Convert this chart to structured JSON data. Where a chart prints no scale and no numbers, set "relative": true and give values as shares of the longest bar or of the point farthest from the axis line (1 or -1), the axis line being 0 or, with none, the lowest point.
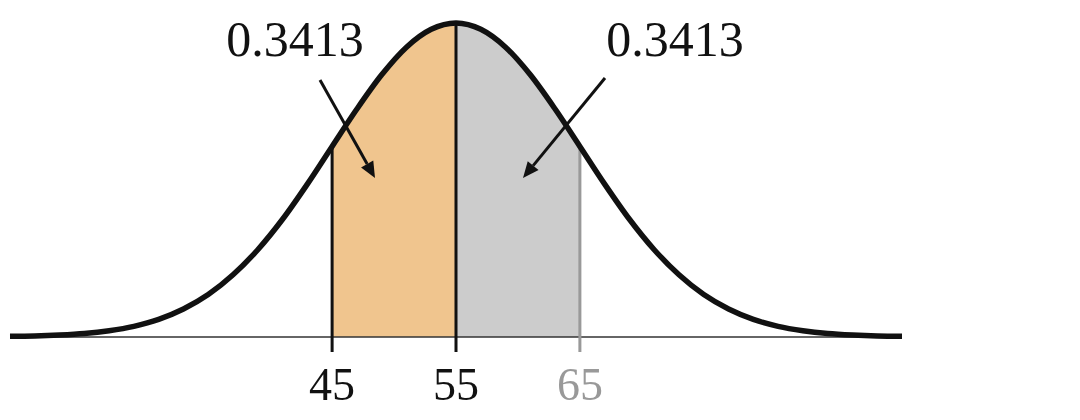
{
  "chart_data": {
    "type": "line",
    "relative": true,
    "xlim": [
      19,
      91
    ],
    "xticks": [
      45,
      55,
      65
    ],
    "series": [
      {
        "type": "area",
        "color": "#f0c58e",
        "x": [
          45,
          47,
          49,
          51,
          53,
          55
        ],
        "values": [
          0.607,
          0.726,
          0.835,
          0.923,
          0.98,
          1
        ]
      },
      {
        "type": "area",
        "color": "#cccccc",
        "x": [
          55,
          57,
          59,
          61,
          63,
          65
        ],
        "values": [
          1,
          0.98,
          0.923,
          0.835,
          0.726,
          0.607
        ]
      },
      {
        "color": "#111111",
        "x": [
          19,
          21,
          23,
          25,
          27,
          29,
          31,
          33,
          35,
          37,
          39,
          41,
          43,
          45,
          47,
          49,
          51,
          53,
          55,
          57,
          59,
          61,
          63,
          65,
          67,
          69,
          71,
          73,
          75,
          77,
          79,
          81,
          83,
          85,
          87,
          89,
          91
        ],
        "values": [
          0.002,
          0.003,
          0.006,
          0.011,
          0.02,
          0.034,
          0.056,
          0.089,
          0.135,
          0.198,
          0.278,
          0.375,
          0.487,
          0.607,
          0.726,
          0.835,
          0.923,
          0.98,
          1,
          0.98,
          0.923,
          0.835,
          0.726,
          0.607,
          0.487,
          0.375,
          0.278,
          0.198,
          0.135,
          0.089,
          0.056,
          0.034,
          0.02,
          0.011,
          0.006,
          0.003,
          0.002
        ]
      }
    ],
    "ref_lines": [
      {
        "axis": "x",
        "value": 45,
        "color": "#111111"
      },
      {
        "axis": "x",
        "value": 55,
        "color": "#111111"
      },
      {
        "axis": "x",
        "value": 65,
        "color": "#999999"
      }
    ],
    "annotations": [
      "0.3413",
      "0.3413"
    ]
  }
}
